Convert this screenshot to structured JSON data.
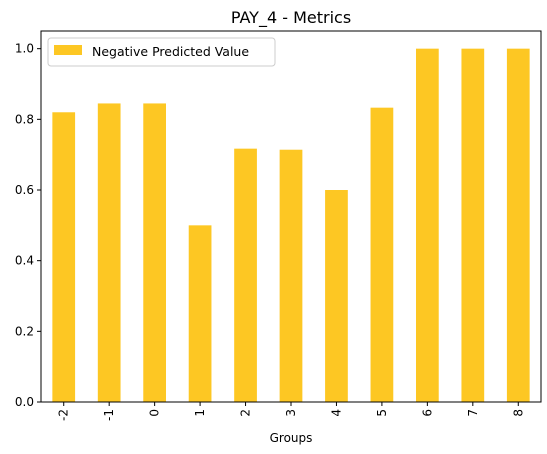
{
  "chart_data": {
    "type": "bar",
    "title": "PAY_4 - Metrics",
    "xlabel": "Groups",
    "ylabel": "",
    "categories": [
      "-2",
      "-1",
      "0",
      "1",
      "2",
      "3",
      "4",
      "5",
      "6",
      "7",
      "8"
    ],
    "series": [
      {
        "name": "Negative Predicted Value",
        "values": [
          0.82,
          0.845,
          0.845,
          0.5,
          0.717,
          0.714,
          0.6,
          0.833,
          1.0,
          1.0,
          1.0
        ]
      }
    ],
    "ylim": [
      0,
      1.05
    ],
    "yticks": [
      "0.0",
      "0.2",
      "0.4",
      "0.6",
      "0.8",
      "1.0"
    ],
    "bar_color": "#fdc723",
    "grid": false,
    "legend_position": "top-left",
    "x_tick_rotation": "vertical"
  }
}
